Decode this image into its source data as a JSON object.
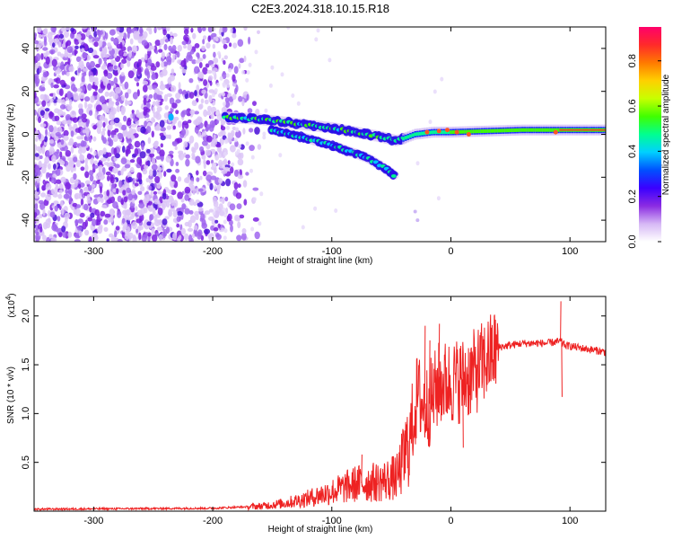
{
  "title": "C2E3.2024.318.10.15.R18",
  "chart_data": [
    {
      "type": "heatmap",
      "xlabel": "Height of straight line (km)",
      "ylabel": "Frequency (Hz)",
      "xlim": [
        -350,
        130
      ],
      "ylim": [
        -50,
        50
      ],
      "xticks": [
        -300,
        -200,
        -100,
        0,
        100
      ],
      "yticks": [
        -40,
        -20,
        0,
        20,
        40
      ],
      "colorbar": {
        "label": "Normalized spectral amplitude",
        "range": [
          0.0,
          0.95
        ],
        "ticks": [
          "0.0",
          "0.2",
          "0.4",
          "0.6",
          "0.8"
        ],
        "colors": [
          "#ffffff",
          "#d6b8f5",
          "#8a2be2",
          "#3a00ff",
          "#0050ff",
          "#00d0ff",
          "#00ff90",
          "#40ff00",
          "#c8ff00",
          "#ffd000",
          "#ff7a00",
          "#ff2a2a",
          "#ff006a"
        ]
      },
      "signal_track": {
        "description": "main tone",
        "x": [
          -190,
          -160,
          -130,
          -100,
          -80,
          -60,
          -45,
          -30,
          -15,
          0,
          30,
          60,
          90,
          130
        ],
        "y": [
          8,
          7,
          5,
          3,
          1,
          -1,
          -3,
          0,
          1,
          1,
          1.5,
          2,
          2,
          2
        ]
      },
      "branch_track": {
        "x": [
          -150,
          -120,
          -95,
          -70,
          -55,
          -48
        ],
        "y": [
          2,
          -2,
          -6,
          -11,
          -16,
          -19
        ]
      }
    },
    {
      "type": "line",
      "xlabel": "Height of straight line (km)",
      "ylabel": "SNR (10 * v/v)",
      "y_multiplier": "(x10",
      "y_multiplier_exp": "4",
      "y_multiplier_close": ")",
      "xlim": [
        -350,
        130
      ],
      "ylim": [
        0,
        2.2
      ],
      "xticks": [
        -300,
        -200,
        -100,
        0,
        100
      ],
      "yticks": [
        "0.5",
        "1.0",
        "1.5",
        "2.0"
      ],
      "color": "#ee2222",
      "envelope": {
        "x": [
          -350,
          -200,
          -160,
          -140,
          -120,
          -100,
          -80,
          -60,
          -45,
          -35,
          -28,
          -22,
          -18,
          -10,
          0,
          10,
          20,
          30,
          40,
          60,
          80,
          92,
          96,
          110,
          130
        ],
        "y": [
          0.02,
          0.03,
          0.05,
          0.08,
          0.13,
          0.2,
          0.28,
          0.3,
          0.35,
          0.7,
          1.2,
          1.05,
          1.1,
          1.3,
          1.32,
          1.35,
          1.42,
          1.55,
          1.68,
          1.72,
          1.72,
          1.74,
          1.7,
          1.67,
          1.63
        ]
      },
      "spikes": [
        {
          "x": -22,
          "y": 1.9
        },
        {
          "x": -18,
          "y": 1.75
        },
        {
          "x": -10,
          "y": 1.92
        },
        {
          "x": 92,
          "y": 2.15
        },
        {
          "x": 93,
          "y": 1.17
        },
        {
          "x": 10,
          "y": 0.65
        },
        {
          "x": -75,
          "y": 0.58
        }
      ]
    }
  ]
}
